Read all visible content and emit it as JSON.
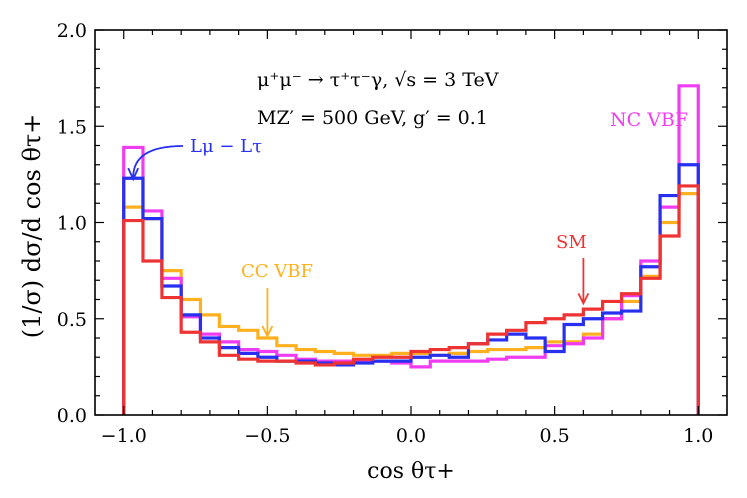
{
  "chart_data": {
    "type": "line",
    "style": "step-histogram",
    "xlabel": "cos θτ+",
    "ylabel": "(1/σ) dσ/d cos θτ+",
    "xlim": [
      -1.1,
      1.1
    ],
    "ylim": [
      0.0,
      2.0
    ],
    "x_ticks": [
      "−1.0",
      "−0.5",
      "0.0",
      "0.5",
      "1.0"
    ],
    "y_ticks": [
      "0.0",
      "0.5",
      "1.0",
      "1.5",
      "2.0"
    ],
    "bin_edges": [
      -1.0,
      -0.933,
      -0.867,
      -0.8,
      -0.733,
      -0.667,
      -0.6,
      -0.533,
      -0.467,
      -0.4,
      -0.333,
      -0.267,
      -0.2,
      -0.133,
      -0.067,
      0.0,
      0.067,
      0.133,
      0.2,
      0.267,
      0.333,
      0.4,
      0.467,
      0.533,
      0.6,
      0.667,
      0.733,
      0.8,
      0.867,
      0.933,
      1.0
    ],
    "series": [
      {
        "name": "CC VBF",
        "color": "#FFB01F",
        "values": [
          1.08,
          1.02,
          0.75,
          0.6,
          0.52,
          0.46,
          0.44,
          0.4,
          0.36,
          0.34,
          0.33,
          0.32,
          0.31,
          0.31,
          0.32,
          0.32,
          0.31,
          0.32,
          0.33,
          0.34,
          0.34,
          0.35,
          0.38,
          0.38,
          0.42,
          0.5,
          0.59,
          0.72,
          1.0,
          1.15
        ]
      },
      {
        "name": "NC VBF",
        "color": "#F03CF0",
        "values": [
          1.39,
          1.06,
          0.71,
          0.51,
          0.42,
          0.38,
          0.34,
          0.33,
          0.31,
          0.29,
          0.28,
          0.28,
          0.28,
          0.28,
          0.27,
          0.25,
          0.28,
          0.28,
          0.28,
          0.29,
          0.3,
          0.3,
          0.36,
          0.37,
          0.4,
          0.5,
          0.62,
          0.8,
          1.08,
          1.71
        ]
      },
      {
        "name": "Lμ − Lτ",
        "color": "#2830F0",
        "values": [
          1.23,
          1.02,
          0.67,
          0.52,
          0.4,
          0.35,
          0.32,
          0.3,
          0.28,
          0.28,
          0.27,
          0.26,
          0.27,
          0.28,
          0.28,
          0.3,
          0.31,
          0.3,
          0.37,
          0.39,
          0.42,
          0.4,
          0.33,
          0.47,
          0.5,
          0.53,
          0.54,
          0.77,
          1.14,
          1.3
        ]
      },
      {
        "name": "SM",
        "color": "#EE3333",
        "values": [
          1.01,
          0.8,
          0.61,
          0.43,
          0.38,
          0.31,
          0.29,
          0.28,
          0.28,
          0.27,
          0.26,
          0.27,
          0.29,
          0.3,
          0.3,
          0.33,
          0.34,
          0.35,
          0.37,
          0.42,
          0.44,
          0.48,
          0.5,
          0.52,
          0.55,
          0.59,
          0.63,
          0.71,
          0.93,
          1.19
        ]
      }
    ],
    "annotations": {
      "process": "μ⁺μ⁻ → τ⁺τ⁻γ, √s = 3 TeV",
      "params": "MZ′ = 500 GeV, g′ = 0.1",
      "cc_vbf": {
        "text": "CC VBF",
        "color": "#FFB01F",
        "points_to": [
          -0.5,
          0.41
        ]
      },
      "nc_vbf": {
        "text": "NC VBF",
        "color": "#F03CF0"
      },
      "lmu": {
        "text": "Lμ − Lτ",
        "color": "#2830F0",
        "points_to": [
          -0.967,
          1.22
        ]
      },
      "sm": {
        "text": "SM",
        "color": "#EE3333",
        "points_to": [
          0.6,
          0.58
        ]
      }
    },
    "grid": false
  }
}
